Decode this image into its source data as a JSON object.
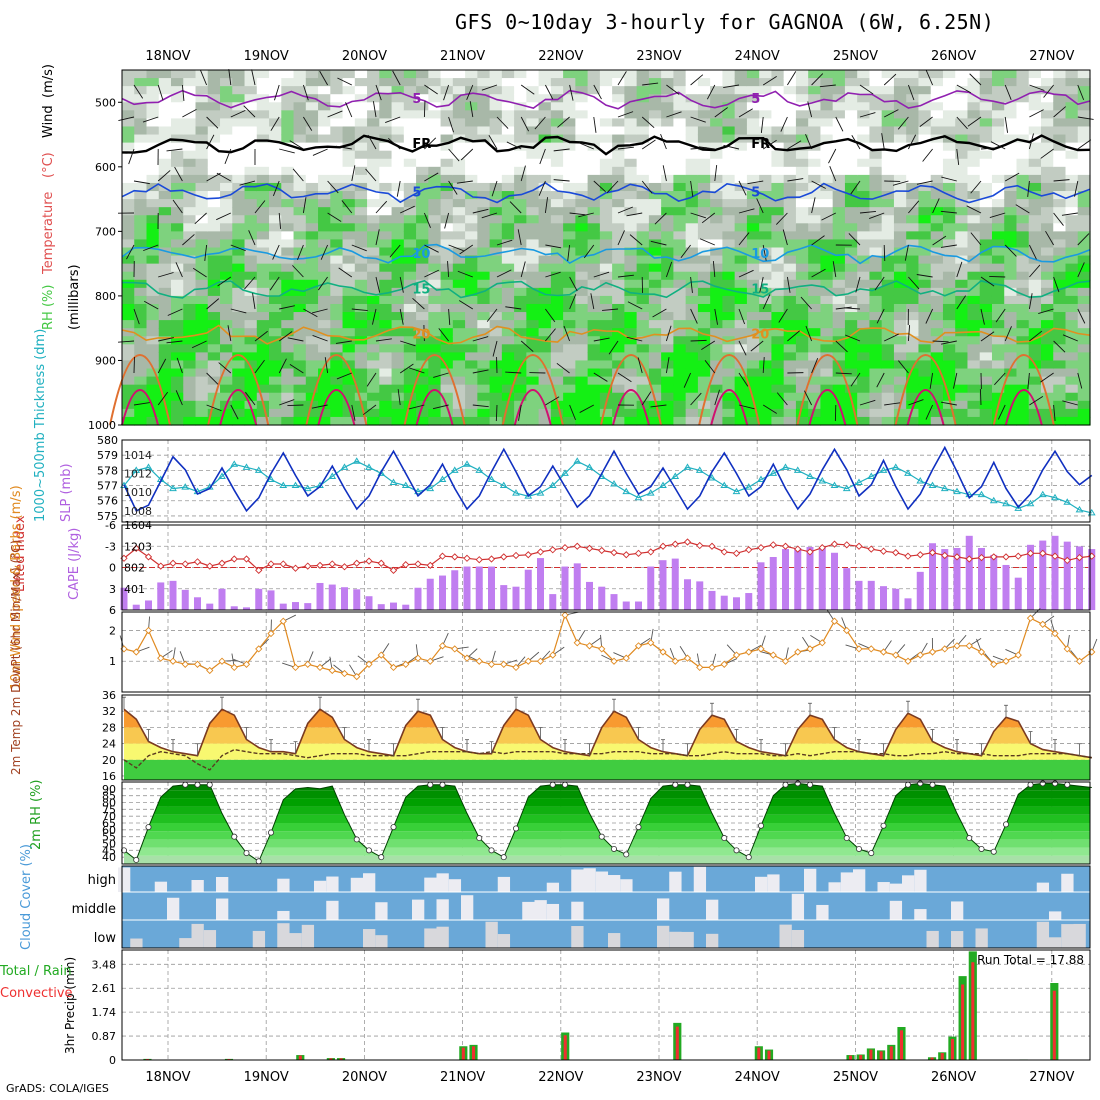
{
  "title": "GFS 0~10day 3-hourly for GAGNOA (6W, 6.25N)",
  "footer": "GrADS: COLA/IGES",
  "chart_data": [
    {
      "type": "heatmap",
      "panel": "upper-air",
      "ylabel": "(millibars)",
      "ylabel_parts": [
        "RH (%)",
        "Temperature",
        "(°C)",
        "Wind",
        "(m/s)"
      ],
      "colors": {
        "rh": "#44c844",
        "temperature": "#e05050",
        "wind": "#000000"
      },
      "yticks": [
        500,
        600,
        700,
        800,
        900,
        1000
      ],
      "ylim": [
        450,
        1000
      ],
      "date_labels": [
        "18NOV",
        "19NOV",
        "20NOV",
        "21NOV",
        "22NOV",
        "23NOV",
        "24NOV",
        "25NOV",
        "26NOV",
        "27NOV"
      ],
      "contours": [
        {
          "label": "5",
          "level_hpa": 495,
          "color": "#9020b0"
        },
        {
          "label": "FR",
          "level_hpa": 565,
          "color": "#000000"
        },
        {
          "label": "5",
          "level_hpa": 640,
          "color": "#1a4ad8"
        },
        {
          "label": "10",
          "level_hpa": 735,
          "color": "#1a9ae0"
        },
        {
          "label": "15",
          "level_hpa": 790,
          "color": "#10b080"
        },
        {
          "label": "20",
          "level_hpa": 860,
          "color": "#e09020"
        }
      ],
      "rh_labels": [
        "30",
        "50",
        "30",
        "50",
        "30",
        "50",
        "30"
      ]
    },
    {
      "type": "line",
      "panel": "thickness-slp",
      "ylabel_left": "1000~500mb Thickness (dm)",
      "ylabel_right": "SLP (mb)",
      "left_ticks": [
        575,
        576,
        577,
        578,
        579,
        580
      ],
      "right_ticks": [
        1008,
        1010,
        1012,
        1014
      ],
      "series": [
        {
          "name": "SLP (mb)",
          "color": "#1030c0",
          "values": [
            1010.8,
            1008.0,
            1008.6,
            1011.2,
            1013.8,
            1012.4,
            1009.8,
            1010.4,
            1012.6,
            1010.2,
            1008.0,
            1009.4,
            1012.0,
            1014.2,
            1011.8,
            1009.6,
            1010.6,
            1012.8,
            1010.4,
            1008.2,
            1009.6,
            1012.2,
            1014.4,
            1012.0,
            1009.6,
            1010.8,
            1013.0,
            1010.4,
            1008.2,
            1009.6,
            1012.2,
            1014.6,
            1012.2,
            1009.6,
            1010.6,
            1012.8,
            1010.6,
            1008.4,
            1009.6,
            1012.0,
            1014.4,
            1012.0,
            1009.8,
            1010.6,
            1012.6,
            1010.4,
            1008.2,
            1009.6,
            1012.2,
            1014.2,
            1012.0,
            1009.6,
            1010.6,
            1013.0,
            1010.4,
            1008.2,
            1009.8,
            1012.4,
            1014.6,
            1012.4,
            1009.6,
            1010.8,
            1013.4,
            1010.6,
            1008.2,
            1009.8,
            1012.4,
            1014.8,
            1012.2,
            1009.4,
            1010.6,
            1013.2,
            1010.4,
            1008.4,
            1009.8,
            1012.4,
            1014.4,
            1012.2,
            1010.8,
            1011.8
          ]
        },
        {
          "name": "Thickness (dm)",
          "color": "#20b0c0",
          "values": [
            577.0,
            578.0,
            578.2,
            577.4,
            576.8,
            576.9,
            576.6,
            576.9,
            577.6,
            578.4,
            578.2,
            578.0,
            577.4,
            577.0,
            577.0,
            576.8,
            577.0,
            577.6,
            578.2,
            578.6,
            578.2,
            577.8,
            577.2,
            577.0,
            576.6,
            576.8,
            577.4,
            578.0,
            578.4,
            578.0,
            577.4,
            577.0,
            576.5,
            576.3,
            576.5,
            577.0,
            577.8,
            578.6,
            578.2,
            577.6,
            577.1,
            576.6,
            576.2,
            576.5,
            577.0,
            577.6,
            578.2,
            578.0,
            577.5,
            577.0,
            576.6,
            576.9,
            577.4,
            577.8,
            578.2,
            578.0,
            577.6,
            577.3,
            577.0,
            576.8,
            577.2,
            577.6,
            578.0,
            578.2,
            577.8,
            577.3,
            577.0,
            576.8,
            576.6,
            576.4,
            576.4,
            576.0,
            575.8,
            575.5,
            575.8,
            576.4,
            576.2,
            575.9,
            575.4,
            575.2
          ]
        }
      ]
    },
    {
      "type": "bar",
      "panel": "cape-li",
      "ylabel_left": "Lifted Index",
      "ylabel_right": "CAPE (J/kg)",
      "left_ticks": [
        -6,
        -3,
        0,
        3,
        6
      ],
      "right_ticks": [
        401,
        802,
        1203,
        1604
      ],
      "series": [
        {
          "name": "CAPE (J/kg)",
          "color": "#c07ef0",
          "values": [
            420,
            100,
            180,
            520,
            550,
            380,
            240,
            120,
            400,
            70,
            50,
            400,
            370,
            120,
            150,
            130,
            510,
            480,
            430,
            390,
            260,
            110,
            140,
            100,
            420,
            590,
            650,
            750,
            820,
            820,
            820,
            470,
            440,
            760,
            980,
            300,
            820,
            880,
            530,
            440,
            300,
            160,
            160,
            820,
            940,
            970,
            580,
            540,
            360,
            270,
            240,
            320,
            900,
            1000,
            1150,
            1170,
            1190,
            1170,
            1080,
            790,
            550,
            550,
            450,
            400,
            220,
            720,
            1260,
            1150,
            1170,
            1400,
            1170,
            1040,
            850,
            610,
            1230,
            1310,
            1400,
            1290,
            1200,
            1150
          ]
        },
        {
          "name": "Lifted Index",
          "color": "#d03030",
          "values": [
            -1.3,
            -2.7,
            -1.5,
            -0.2,
            -0.6,
            -0.5,
            -0.8,
            -0.2,
            -0.6,
            -1.2,
            -1.2,
            0.4,
            -0.5,
            -0.5,
            0.1,
            -0.2,
            -0.3,
            -0.5,
            -0.1,
            -0.6,
            -0.9,
            -0.6,
            0.4,
            -0.4,
            -0.5,
            -0.3,
            -1.6,
            -1.5,
            -1.3,
            -1.1,
            -1.2,
            -1.5,
            -1.7,
            -1.8,
            -2.2,
            -2.5,
            -2.8,
            -3.0,
            -2.7,
            -2.4,
            -2.1,
            -1.8,
            -2.0,
            -2.2,
            -3.0,
            -3.3,
            -3.6,
            -3.1,
            -3.0,
            -2.2,
            -2.0,
            -2.5,
            -2.8,
            -3.2,
            -3.0,
            -2.6,
            -2.2,
            -2.8,
            -3.3,
            -3.2,
            -3.0,
            -2.6,
            -2.3,
            -2.1,
            -1.6,
            -1.8,
            -2.1,
            -1.7,
            -1.5,
            -1.2,
            -1.4,
            -1.5,
            -1.5,
            -1.6,
            -2.0,
            -2.0,
            -1.6,
            -1.0,
            -1.4,
            -1.6
          ]
        }
      ]
    },
    {
      "type": "line",
      "panel": "wind10m",
      "ylabel": "10m Wind Speed & Barbs (m/s)",
      "yticks": [
        1,
        2
      ],
      "ylim": [
        0,
        2.6
      ],
      "series": [
        {
          "name": "10m Wind Speed",
          "color": "#e08a20",
          "values": [
            1.4,
            1.3,
            2.0,
            1.1,
            1.0,
            0.9,
            0.9,
            0.7,
            1.0,
            0.8,
            0.9,
            1.4,
            1.9,
            2.3,
            0.8,
            0.9,
            0.8,
            0.7,
            0.6,
            0.5,
            0.9,
            1.2,
            0.8,
            0.9,
            1.1,
            1.0,
            1.5,
            1.4,
            1.1,
            1.0,
            0.9,
            0.9,
            0.8,
            1.0,
            1.0,
            1.2,
            2.5,
            1.6,
            1.5,
            1.4,
            1.0,
            1.1,
            1.5,
            1.6,
            1.3,
            1.0,
            1.1,
            0.8,
            0.8,
            0.9,
            1.2,
            1.3,
            1.4,
            1.2,
            1.0,
            1.3,
            1.4,
            1.6,
            2.3,
            2.0,
            1.4,
            1.4,
            1.3,
            1.2,
            1.0,
            1.2,
            1.3,
            1.4,
            1.5,
            1.5,
            1.3,
            0.9,
            1.0,
            1.2,
            2.4,
            2.2,
            1.9,
            1.4,
            1.0,
            1.3
          ]
        }
      ]
    },
    {
      "type": "area",
      "panel": "temperature",
      "ylabel": "2m Temp 2m DewPt (6hr Min/Max) (°C)",
      "yticks": [
        16,
        20,
        24,
        28,
        32,
        36
      ],
      "ylim": [
        15,
        36
      ],
      "series": [
        {
          "name": "2m Temp",
          "color": "#7a3a20",
          "values": [
            32.5,
            30,
            24.5,
            23,
            22,
            21.5,
            21,
            29,
            32.5,
            31,
            25,
            23,
            22,
            22,
            21.5,
            29,
            32.5,
            30.5,
            25,
            23,
            22,
            21.5,
            21,
            28.5,
            32,
            31,
            25,
            23,
            22,
            21.5,
            21.5,
            28.5,
            32.5,
            31,
            25,
            23,
            22,
            21.5,
            21,
            28,
            32,
            30.5,
            25,
            23,
            22,
            21.5,
            21,
            27.5,
            31,
            30,
            24.5,
            23,
            22,
            21.5,
            21,
            27.5,
            31,
            30,
            25,
            23,
            22,
            21.5,
            21,
            27.5,
            31.5,
            30,
            24.5,
            23,
            22,
            21.5,
            21,
            27,
            30.5,
            29.5,
            24,
            22.5,
            22,
            21.5,
            21,
            20.5
          ]
        },
        {
          "name": "2m DewPt",
          "color": "#5a3a20",
          "values": [
            20,
            18,
            21,
            22,
            21.5,
            21,
            19,
            17.5,
            21,
            22.5,
            22,
            21.5,
            21.5,
            21.5,
            21,
            20.5,
            21,
            21.5,
            21.5,
            21.5,
            21,
            21,
            21,
            21,
            21.5,
            22,
            22,
            22,
            22,
            21.5,
            22,
            21.5,
            22,
            22,
            22,
            22,
            21.5,
            21.5,
            21.5,
            21.5,
            22,
            22,
            22,
            21.5,
            21.5,
            21.5,
            21,
            21,
            21.5,
            22,
            21.5,
            21.5,
            21.5,
            21,
            21,
            21.5,
            21,
            21.5,
            22,
            22,
            22,
            21.5,
            21.5,
            21,
            21,
            21.5,
            21.5,
            22,
            21.5,
            21.5,
            21.5,
            21,
            21,
            21,
            21.5,
            21.5,
            21.5,
            21.5,
            21,
            20.5
          ]
        }
      ]
    },
    {
      "type": "area",
      "panel": "rh2m",
      "ylabel": "2m RH (%)",
      "yticks": [
        40,
        45,
        50,
        55,
        60,
        65,
        70,
        75,
        80,
        85,
        90
      ],
      "ylim": [
        35,
        95
      ],
      "series": [
        {
          "name": "2m RH",
          "color": "#008000",
          "values": [
            45,
            38,
            62,
            84,
            92,
            93,
            93,
            93,
            72,
            55,
            43,
            37,
            58,
            82,
            90,
            91,
            90,
            92,
            71,
            53,
            45,
            40,
            62,
            84,
            92,
            93,
            93,
            92,
            72,
            54,
            45,
            40,
            61,
            84,
            92,
            93,
            93,
            92,
            72,
            55,
            46,
            42,
            62,
            83,
            92,
            93,
            93,
            92,
            72,
            54,
            45,
            40,
            63,
            85,
            93,
            94,
            93,
            92,
            72,
            54,
            46,
            43,
            63,
            85,
            93,
            94,
            93,
            92,
            72,
            54,
            46,
            44,
            64,
            86,
            93,
            94,
            94,
            93,
            92,
            91
          ]
        }
      ]
    },
    {
      "type": "bar",
      "panel": "cloud-cover",
      "ylabel": "Cloud Cover (%)",
      "categories": [
        "high",
        "middle",
        "low"
      ],
      "colors": {
        "cloud": "#6aa8d8",
        "clear": "#ececf2"
      }
    },
    {
      "type": "bar",
      "panel": "precip",
      "ylabel": "3hr Precip (mm)",
      "legend": [
        "Total / Rain",
        "Convective"
      ],
      "colors": {
        "total": "#22aa22",
        "convective": "#ee3030"
      },
      "annotation": "Run Total = 17.88",
      "yticks": [
        0,
        0.87,
        1.74,
        2.61,
        3.48
      ],
      "ylim": [
        0,
        4
      ],
      "values": [
        0,
        0,
        0.04,
        0,
        0,
        0,
        0,
        0,
        0,
        0,
        0.04,
        0,
        0,
        0,
        0,
        0,
        0,
        0.18,
        0,
        0,
        0.07,
        0.07,
        0,
        0,
        0,
        0,
        0,
        0,
        0,
        0,
        0,
        0,
        0,
        0.5,
        0.55,
        0,
        0,
        0,
        0,
        0,
        0,
        0,
        0,
        1,
        0,
        0,
        0,
        0,
        0,
        0,
        0,
        0,
        0,
        0,
        1.35,
        0,
        0,
        0,
        0,
        0,
        0,
        0,
        0.5,
        0.38,
        0,
        0,
        0,
        0,
        0,
        0,
        0,
        0.18,
        0.2,
        0.42,
        0.35,
        0.55,
        1.2,
        0,
        0,
        0.1,
        0.28,
        0.85,
        3.05,
        3.95,
        0,
        0,
        0,
        0,
        0.02,
        0,
        0,
        2.8,
        0,
        0,
        0
      ]
    }
  ]
}
